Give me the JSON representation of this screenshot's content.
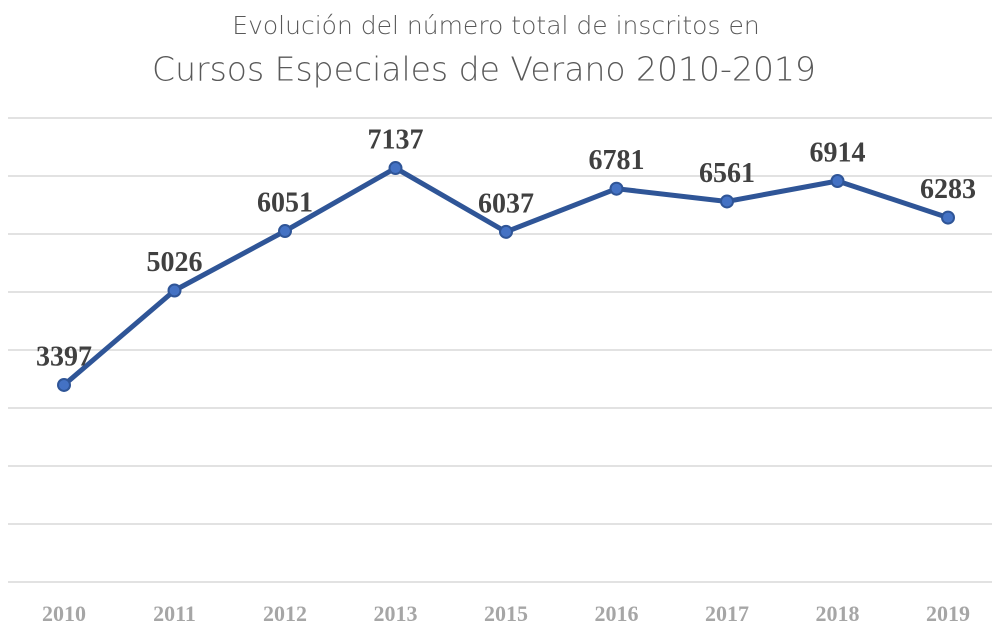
{
  "chart_data": {
    "type": "line",
    "title_lines": [
      "Evolución del número total de inscritos en",
      "Cursos Especiales de Verano 2010-2019"
    ],
    "categories": [
      "2010",
      "2011",
      "2012",
      "2013",
      "2015",
      "2016",
      "2017",
      "2018",
      "2019"
    ],
    "series": [
      {
        "color": "#2f5597",
        "values": [
          3397,
          5026,
          6051,
          7137,
          6037,
          6781,
          6561,
          6914,
          6283
        ]
      }
    ],
    "ylim": [
      0,
      8000
    ],
    "yticks": [
      0,
      1000,
      2000,
      3000,
      4000,
      5000,
      6000,
      7000,
      8000
    ],
    "grid": true
  }
}
